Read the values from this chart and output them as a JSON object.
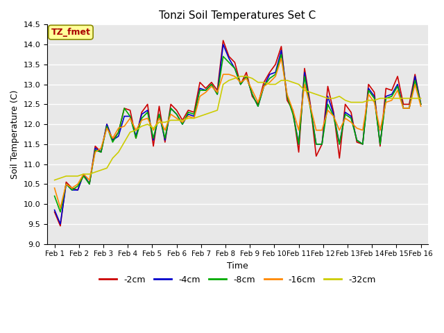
{
  "title": "Tonzi Soil Temperatures Set C",
  "xlabel": "Time",
  "ylabel": "Soil Temperature (C)",
  "ylim": [
    9.0,
    14.5
  ],
  "fig_facecolor": "#ffffff",
  "plot_bg_color": "#e8e8e8",
  "annotation_text": "TZ_fmet",
  "annotation_color": "#aa0000",
  "annotation_bg": "#ffff99",
  "legend_entries": [
    "-2cm",
    "-4cm",
    "-8cm",
    "-16cm",
    "-32cm"
  ],
  "line_colors": [
    "#cc0000",
    "#0000cc",
    "#00aa00",
    "#ff8800",
    "#cccc00"
  ],
  "xtick_labels": [
    "Feb 1",
    "Feb 2",
    "Feb 3",
    "Feb 4",
    "Feb 5",
    "Feb 6",
    "Feb 7",
    "Feb 8",
    "Feb 9",
    "Feb 10",
    "Feb 11",
    "Feb 12",
    "Feb 13",
    "Feb 14",
    "Feb 15",
    "Feb 16"
  ],
  "series_2cm": [
    9.8,
    9.45,
    10.55,
    10.4,
    10.35,
    10.75,
    10.5,
    11.45,
    11.3,
    12.0,
    11.6,
    11.8,
    12.4,
    12.35,
    11.65,
    12.3,
    12.5,
    11.45,
    12.45,
    11.55,
    12.5,
    12.35,
    12.1,
    12.35,
    12.3,
    13.05,
    12.9,
    13.05,
    12.85,
    14.1,
    13.7,
    13.55,
    13.0,
    13.3,
    12.7,
    12.5,
    13.05,
    13.3,
    13.5,
    13.95,
    12.6,
    12.35,
    11.3,
    13.4,
    12.5,
    11.2,
    11.5,
    12.95,
    12.3,
    11.15,
    12.5,
    12.3,
    11.55,
    11.5,
    13.0,
    12.8,
    11.45,
    12.9,
    12.85,
    13.2,
    12.5,
    12.5,
    13.25,
    12.5
  ],
  "series_4cm": [
    9.85,
    9.5,
    10.5,
    10.35,
    10.35,
    10.75,
    10.5,
    11.4,
    11.3,
    12.0,
    11.6,
    11.7,
    12.2,
    12.2,
    11.7,
    12.25,
    12.35,
    11.6,
    12.25,
    11.6,
    12.4,
    12.25,
    12.0,
    12.25,
    12.2,
    12.9,
    12.85,
    13.0,
    12.75,
    14.0,
    13.65,
    13.4,
    13.0,
    13.2,
    12.75,
    12.45,
    12.95,
    13.25,
    13.3,
    13.85,
    12.7,
    12.3,
    11.5,
    13.3,
    12.45,
    11.5,
    11.5,
    12.7,
    12.25,
    11.5,
    12.3,
    12.2,
    11.6,
    11.5,
    12.9,
    12.7,
    11.5,
    12.7,
    12.75,
    13.0,
    12.4,
    12.4,
    13.2,
    12.5
  ],
  "series_8cm": [
    10.2,
    9.8,
    10.5,
    10.35,
    10.45,
    10.7,
    10.5,
    11.35,
    11.3,
    11.95,
    11.55,
    11.8,
    12.4,
    12.2,
    11.65,
    12.15,
    12.3,
    11.65,
    12.25,
    11.65,
    12.4,
    12.25,
    12.0,
    12.3,
    12.25,
    12.85,
    12.85,
    13.0,
    12.75,
    13.7,
    13.55,
    13.4,
    13.0,
    13.2,
    12.75,
    12.45,
    12.95,
    13.15,
    13.25,
    13.75,
    12.7,
    12.25,
    11.5,
    13.2,
    12.4,
    11.5,
    11.5,
    12.5,
    12.2,
    11.5,
    12.25,
    12.15,
    11.6,
    11.5,
    12.85,
    12.65,
    11.5,
    12.65,
    12.7,
    12.95,
    12.4,
    12.4,
    13.1,
    12.5
  ],
  "series_16cm": [
    10.4,
    9.9,
    10.5,
    10.4,
    10.5,
    10.75,
    10.6,
    11.3,
    11.4,
    11.9,
    11.65,
    11.9,
    11.95,
    12.15,
    11.85,
    12.1,
    12.15,
    11.85,
    12.15,
    11.85,
    12.25,
    12.15,
    12.05,
    12.2,
    12.15,
    12.7,
    12.8,
    12.95,
    12.8,
    13.25,
    13.25,
    13.2,
    13.05,
    13.15,
    12.85,
    12.55,
    12.95,
    13.05,
    13.2,
    13.65,
    12.75,
    12.35,
    11.85,
    13.0,
    12.45,
    11.85,
    11.85,
    12.35,
    12.2,
    11.85,
    12.15,
    12.05,
    11.9,
    11.85,
    12.75,
    12.55,
    11.85,
    12.55,
    12.6,
    12.85,
    12.4,
    12.4,
    13.0,
    12.45
  ],
  "series_32cm": [
    10.6,
    10.65,
    10.7,
    10.7,
    10.7,
    10.75,
    10.75,
    10.8,
    10.85,
    10.9,
    11.15,
    11.3,
    11.55,
    11.8,
    11.85,
    11.95,
    12.0,
    11.9,
    12.05,
    12.05,
    12.1,
    12.1,
    12.1,
    12.15,
    12.15,
    12.2,
    12.25,
    12.3,
    12.35,
    13.0,
    13.1,
    13.15,
    13.2,
    13.2,
    13.15,
    13.05,
    13.05,
    13.0,
    13.0,
    13.1,
    13.1,
    13.05,
    13.0,
    12.85,
    12.8,
    12.75,
    12.7,
    12.65,
    12.65,
    12.7,
    12.6,
    12.55,
    12.55,
    12.55,
    12.6,
    12.6,
    12.65,
    12.65,
    12.65,
    12.65,
    12.65,
    12.65,
    12.65,
    12.65
  ]
}
